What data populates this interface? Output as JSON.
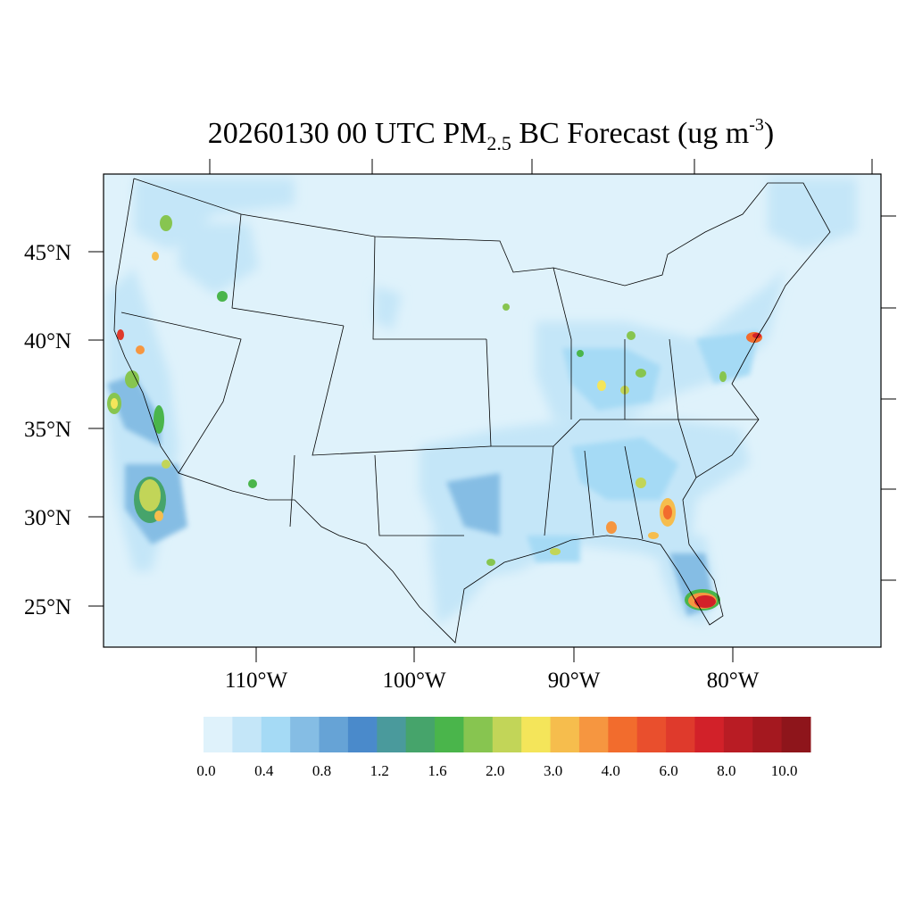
{
  "title": {
    "prefix": "20260130 00 UTC PM",
    "subscript": "2.5",
    "middle": " BC Forecast (ug m",
    "superscript": "-3",
    "suffix": ")"
  },
  "map": {
    "lat_labels": [
      "45°N",
      "40°N",
      "35°N",
      "30°N",
      "25°N"
    ],
    "lon_labels": [
      "110°W",
      "100°W",
      "90°W",
      "80°W"
    ],
    "background_color": "#dff2fb"
  },
  "colorbar": {
    "tick_labels": [
      "0.0",
      "0.4",
      "0.8",
      "1.2",
      "1.6",
      "2.0",
      "3.0",
      "4.0",
      "6.0",
      "8.0",
      "10.0"
    ],
    "colors": [
      "#dff2fb",
      "#c4e6f8",
      "#a5daf5",
      "#85bde4",
      "#66a3d6",
      "#4a8acb",
      "#4a9a9c",
      "#46a46b",
      "#4ab54b",
      "#87c550",
      "#c2d558",
      "#f4e55a",
      "#f6bd4d",
      "#f69640",
      "#f26c2d",
      "#e94f2d",
      "#df3a2c",
      "#d22129",
      "#b91c24",
      "#a4181f",
      "#8e151b"
    ]
  },
  "hotspots": [
    {
      "name": "south-florida",
      "level": 18
    },
    {
      "name": "central-valley-ca",
      "level": 11
    },
    {
      "name": "los-angeles",
      "level": 11
    },
    {
      "name": "new-york",
      "level": 15
    },
    {
      "name": "georgia",
      "level": 13
    },
    {
      "name": "florida-panhandle",
      "level": 14
    },
    {
      "name": "mobile-al",
      "level": 13
    },
    {
      "name": "houston",
      "level": 10
    },
    {
      "name": "indianapolis",
      "level": 11
    },
    {
      "name": "ohio",
      "level": 11
    },
    {
      "name": "norcal-coast",
      "level": 19
    },
    {
      "name": "seattle",
      "level": 10
    }
  ]
}
